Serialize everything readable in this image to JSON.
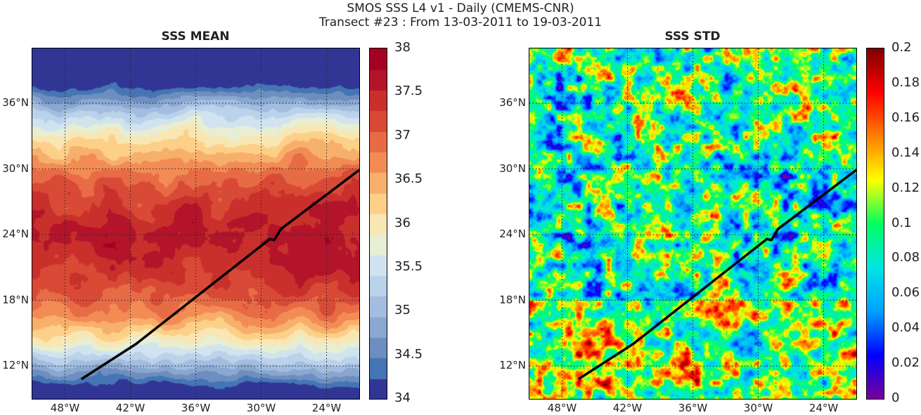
{
  "figure": {
    "title_line1": "SMOS SSS L4 v1 - Daily (CMEMS-CNR)",
    "title_line2": "Transect #23 : From 13-03-2011 to 19-03-2011"
  },
  "chart_data": [
    {
      "type": "heatmap",
      "title": "SSS MEAN",
      "x_ticks": [
        "48°W",
        "42°W",
        "36°W",
        "30°W",
        "24°W"
      ],
      "y_ticks": [
        "36°N",
        "30°N",
        "24°N",
        "18°N",
        "12°N"
      ],
      "xlim": [
        -51,
        -21
      ],
      "ylim": [
        9,
        41
      ],
      "grid": true,
      "colorbar": {
        "range": [
          34,
          38
        ],
        "ticks": [
          "38",
          "37.5",
          "37",
          "36.5",
          "36",
          "35.5",
          "35",
          "34.5",
          "34"
        ],
        "colormap": "blue-to-red diverging (discrete)",
        "colors": [
          "#313695",
          "#4575b4",
          "#6e8ebf",
          "#8aa7cf",
          "#a3bde0",
          "#bad2ea",
          "#d0e3ef",
          "#e7eed3",
          "#f8e7b2",
          "#fdd08a",
          "#f7b06b",
          "#f28c54",
          "#e76b45",
          "#d94a36",
          "#c9302c",
          "#b3142a",
          "#a50026"
        ]
      },
      "transect": {
        "color": "#000000",
        "points": [
          [
            -46.5,
            10.8
          ],
          [
            -41.5,
            14.0
          ],
          [
            -29.2,
            23.6
          ],
          [
            -28.8,
            23.5
          ],
          [
            -28.2,
            24.5
          ],
          [
            -21,
            29.9
          ]
        ]
      }
    },
    {
      "type": "heatmap",
      "title": "SSS STD",
      "x_ticks": [
        "48°W",
        "42°W",
        "36°W",
        "30°W",
        "24°W"
      ],
      "y_ticks": [
        "36°N",
        "30°N",
        "24°N",
        "18°N",
        "12°N"
      ],
      "xlim": [
        -51,
        -21
      ],
      "ylim": [
        9,
        41
      ],
      "grid": true,
      "colorbar": {
        "range": [
          0,
          0.2
        ],
        "ticks": [
          "0.2",
          "0.18",
          "0.16",
          "0.14",
          "0.12",
          "0.1",
          "0.08",
          "0.06",
          "0.04",
          "0.02",
          "0"
        ],
        "colormap": "jet",
        "colors": [
          "#7b0099",
          "#0000ff",
          "#00a0ff",
          "#00e5e5",
          "#00ff60",
          "#ffff00",
          "#ff8000",
          "#ff0000",
          "#800000"
        ]
      },
      "transect": {
        "color": "#000000",
        "points": [
          [
            -46.5,
            10.8
          ],
          [
            -41.5,
            14.0
          ],
          [
            -29.2,
            23.6
          ],
          [
            -28.8,
            23.5
          ],
          [
            -28.2,
            24.5
          ],
          [
            -21,
            29.9
          ]
        ]
      }
    }
  ]
}
